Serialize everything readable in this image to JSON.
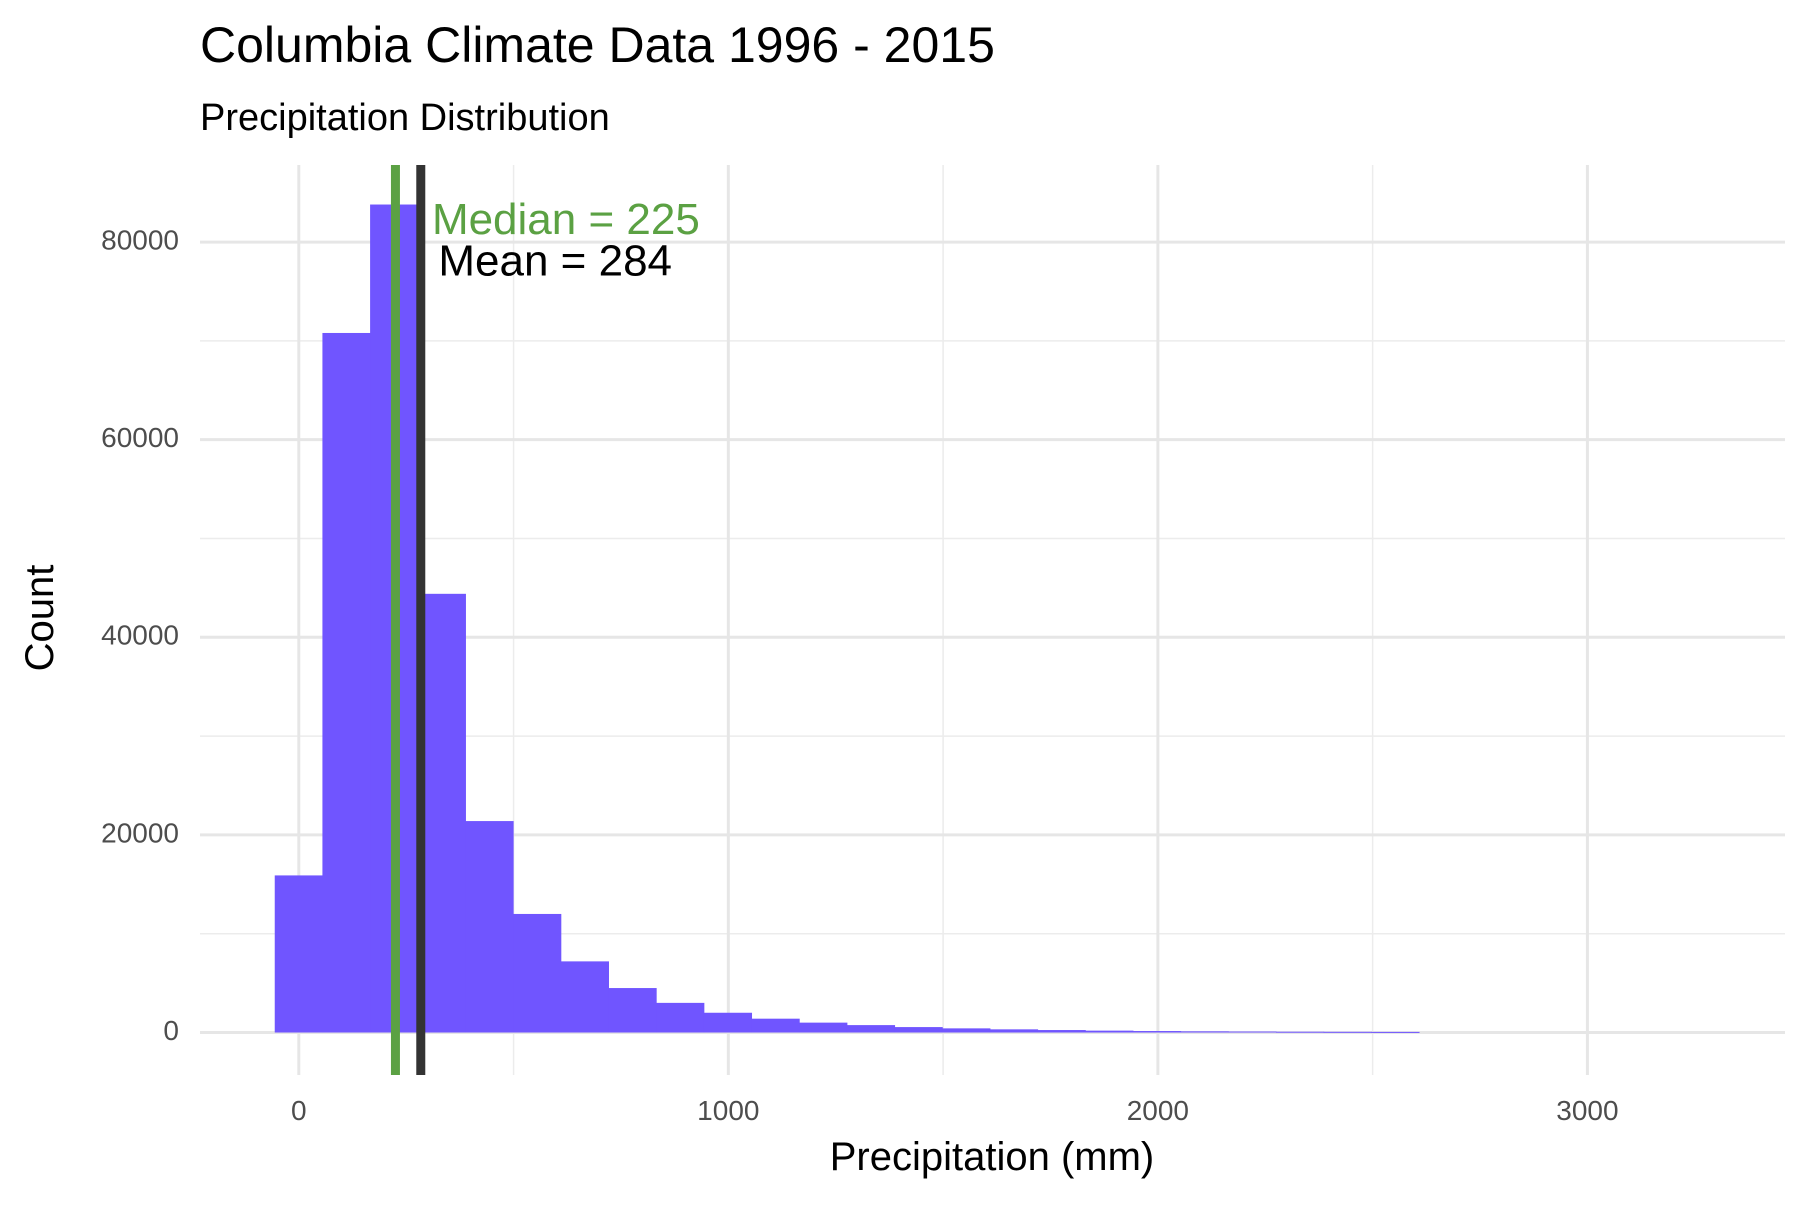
{
  "chart_data": {
    "type": "bar",
    "title": "Columbia Climate Data 1996 - 2015",
    "subtitle": "Precipitation Distribution",
    "xlabel": "Precipitation (mm)",
    "ylabel": "Count",
    "xlim": [
      -230,
      3460
    ],
    "ylim": [
      -4300,
      87800
    ],
    "x_ticks": [
      0,
      1000,
      2000,
      3000
    ],
    "x_tick_labels": [
      "0",
      "1000",
      "2000",
      "3000"
    ],
    "y_ticks": [
      0,
      20000,
      40000,
      60000,
      80000
    ],
    "y_tick_labels": [
      "0",
      "20000",
      "40000",
      "60000",
      "80000"
    ],
    "grid": true,
    "legend": "none",
    "bin_width": 111,
    "bins": [
      {
        "start": -56,
        "end": 55,
        "count": 15900
      },
      {
        "start": 55,
        "end": 166,
        "count": 70800
      },
      {
        "start": 166,
        "end": 277,
        "count": 83800
      },
      {
        "start": 277,
        "end": 388,
        "count": 44400
      },
      {
        "start": 388,
        "end": 499,
        "count": 21400
      },
      {
        "start": 499,
        "end": 610,
        "count": 12000
      },
      {
        "start": 610,
        "end": 721,
        "count": 7200
      },
      {
        "start": 721,
        "end": 832,
        "count": 4500
      },
      {
        "start": 832,
        "end": 943,
        "count": 3000
      },
      {
        "start": 943,
        "end": 1054,
        "count": 2000
      },
      {
        "start": 1054,
        "end": 1165,
        "count": 1400
      },
      {
        "start": 1165,
        "end": 1276,
        "count": 1000
      },
      {
        "start": 1276,
        "end": 1387,
        "count": 750
      },
      {
        "start": 1387,
        "end": 1498,
        "count": 550
      },
      {
        "start": 1498,
        "end": 1609,
        "count": 420
      },
      {
        "start": 1609,
        "end": 1720,
        "count": 320
      },
      {
        "start": 1720,
        "end": 1831,
        "count": 250
      },
      {
        "start": 1831,
        "end": 1942,
        "count": 190
      },
      {
        "start": 1942,
        "end": 2053,
        "count": 150
      },
      {
        "start": 2053,
        "end": 2164,
        "count": 120
      },
      {
        "start": 2164,
        "end": 2275,
        "count": 100
      },
      {
        "start": 2275,
        "end": 2386,
        "count": 80
      },
      {
        "start": 2386,
        "end": 2497,
        "count": 70
      },
      {
        "start": 2497,
        "end": 2608,
        "count": 60
      }
    ],
    "bar_color": "#7055ff",
    "reference_lines": [
      {
        "label": "Median = 225",
        "value": 225,
        "color": "#5ba143"
      },
      {
        "label": "Mean = 284",
        "value": 284,
        "color": "#333333"
      }
    ],
    "annotations": [
      {
        "text": "Median = 225",
        "x": 310,
        "y": 82000,
        "color": "#5ba143"
      },
      {
        "text": "Mean = 284",
        "x": 325,
        "y": 77800,
        "color": "#000000"
      }
    ]
  }
}
